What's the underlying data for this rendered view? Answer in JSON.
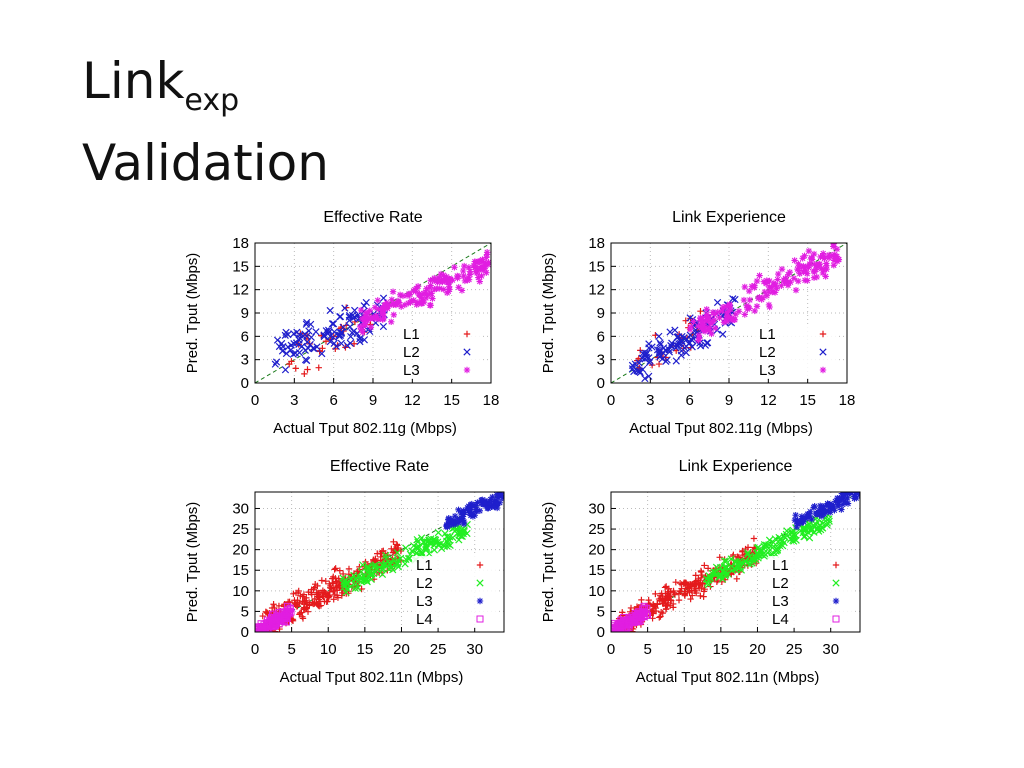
{
  "slide": {
    "title_main": "Link",
    "title_sub": "exp",
    "title_line2": "Validation"
  },
  "chart_data": [
    {
      "type": "scatter",
      "title": "Effective Rate",
      "xlabel": "Actual Tput 802.11g (Mbps)",
      "ylabel": "Pred. Tput (Mbps)",
      "xlim": [
        0,
        18
      ],
      "ylim": [
        0,
        18
      ],
      "xticks": [
        0,
        3,
        6,
        9,
        12,
        15,
        18
      ],
      "yticks": [
        0,
        3,
        6,
        9,
        12,
        15,
        18
      ],
      "diagonal": true,
      "legend": "bottom-right",
      "series": [
        {
          "name": "L1",
          "marker": "plus",
          "color": "#e41a1c",
          "count": 30,
          "x_range": [
            2,
            9
          ],
          "slope": 0.85,
          "offset": 0.2,
          "spread": 1.6
        },
        {
          "name": "L2",
          "marker": "x",
          "color": "#1f1fcc",
          "count": 120,
          "x_range": [
            1.5,
            10
          ],
          "slope": 0.6,
          "offset": 3.0,
          "spread": 1.2
        },
        {
          "name": "L3",
          "marker": "star",
          "color": "#e11ee1",
          "count": 170,
          "x_range": [
            8,
            18
          ],
          "slope": 0.75,
          "offset": 2.0,
          "spread": 0.8
        }
      ]
    },
    {
      "type": "scatter",
      "title": "Link Experience",
      "xlabel": "Actual Tput 802.11g (Mbps)",
      "ylabel": "Pred. Tput (Mbps)",
      "xlim": [
        0,
        18
      ],
      "ylim": [
        0,
        18
      ],
      "xticks": [
        0,
        3,
        6,
        9,
        12,
        15,
        18
      ],
      "yticks": [
        0,
        3,
        6,
        9,
        12,
        15,
        18
      ],
      "diagonal": true,
      "legend": "bottom-right",
      "series": [
        {
          "name": "L1",
          "marker": "plus",
          "color": "#e41a1c",
          "count": 30,
          "x_range": [
            1.5,
            7
          ],
          "slope": 0.9,
          "offset": 0.8,
          "spread": 1.2
        },
        {
          "name": "L2",
          "marker": "x",
          "color": "#1f1fcc",
          "count": 120,
          "x_range": [
            1.5,
            9.5
          ],
          "slope": 0.95,
          "offset": 0.3,
          "spread": 1.0
        },
        {
          "name": "L3",
          "marker": "star",
          "color": "#e11ee1",
          "count": 170,
          "x_range": [
            6,
            17.5
          ],
          "slope": 0.92,
          "offset": 0.8,
          "spread": 1.0
        }
      ]
    },
    {
      "type": "scatter",
      "title": "Effective Rate",
      "xlabel": "Actual Tput 802.11n (Mbps)",
      "ylabel": "Pred. Tput (Mbps)",
      "xlim": [
        0,
        34
      ],
      "ylim": [
        0,
        34
      ],
      "xticks": [
        0,
        5,
        10,
        15,
        20,
        25,
        30
      ],
      "yticks": [
        0,
        5,
        10,
        15,
        20,
        25,
        30
      ],
      "diagonal": true,
      "legend": "bottom-right",
      "series": [
        {
          "name": "L1",
          "marker": "plus",
          "color": "#e41a1c",
          "count": 320,
          "x_range": [
            1,
            20
          ],
          "slope": 0.95,
          "offset": 0.3,
          "spread": 1.8
        },
        {
          "name": "L2",
          "marker": "x",
          "color": "#22ee22",
          "count": 160,
          "x_range": [
            12,
            29
          ],
          "slope": 0.8,
          "offset": 2.0,
          "spread": 1.2
        },
        {
          "name": "L3",
          "marker": "star",
          "color": "#1f1fcc",
          "count": 90,
          "x_range": [
            26,
            34
          ],
          "slope": 0.9,
          "offset": 2.5,
          "spread": 1.0
        },
        {
          "name": "L4",
          "marker": "square",
          "color": "#e11ee1",
          "count": 120,
          "x_range": [
            0,
            5
          ],
          "slope": 1.0,
          "offset": 0.0,
          "spread": 0.8
        }
      ]
    },
    {
      "type": "scatter",
      "title": "Link Experience",
      "xlabel": "Actual Tput 802.11n (Mbps)",
      "ylabel": "Pred. Tput (Mbps)",
      "xlim": [
        0,
        34
      ],
      "ylim": [
        0,
        34
      ],
      "xticks": [
        0,
        5,
        10,
        15,
        20,
        25,
        30
      ],
      "yticks": [
        0,
        5,
        10,
        15,
        20,
        25,
        30
      ],
      "diagonal": true,
      "legend": "bottom-right",
      "series": [
        {
          "name": "L1",
          "marker": "plus",
          "color": "#e41a1c",
          "count": 320,
          "x_range": [
            1,
            20
          ],
          "slope": 0.95,
          "offset": 0.5,
          "spread": 1.5
        },
        {
          "name": "L2",
          "marker": "x",
          "color": "#22ee22",
          "count": 160,
          "x_range": [
            13,
            30
          ],
          "slope": 0.85,
          "offset": 2.0,
          "spread": 1.0
        },
        {
          "name": "L3",
          "marker": "star",
          "color": "#1f1fcc",
          "count": 90,
          "x_range": [
            25,
            34
          ],
          "slope": 0.95,
          "offset": 2.0,
          "spread": 1.0
        },
        {
          "name": "L4",
          "marker": "square",
          "color": "#e11ee1",
          "count": 120,
          "x_range": [
            0,
            5
          ],
          "slope": 1.0,
          "offset": 0.0,
          "spread": 0.7
        }
      ]
    }
  ]
}
